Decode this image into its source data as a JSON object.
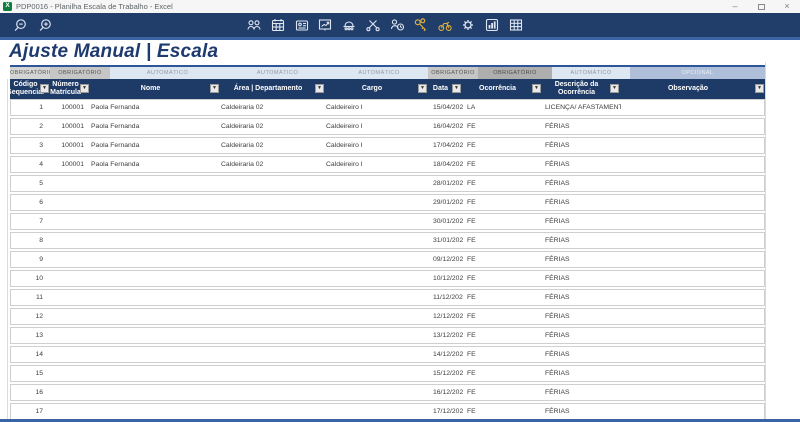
{
  "window": {
    "title": "PDP0016 - Planilha Escala de Trabalho - Excel",
    "controls": {
      "minimize": "–",
      "close": "×"
    }
  },
  "toolbar": {
    "icons": [
      "team-icon",
      "calendar-icon",
      "badge-icon",
      "chart-board-icon",
      "machine-icon",
      "tools-icon",
      "shift-clock-icon",
      "keys-icon",
      "equipment-icon",
      "gear-icon",
      "bar-chart-icon",
      "grid-icon"
    ],
    "zoom_controls": [
      "zoom-out",
      "zoom-in"
    ]
  },
  "page": {
    "title": "Ajuste Manual | Escala"
  },
  "colors": {
    "toolbar_navy": "#213d69",
    "header_navy": "#1e3a66",
    "accent_blue": "#3a64a6",
    "title_blue": "#1e3a6e",
    "gold_icon": "#dcb13f"
  },
  "table": {
    "categories": [
      {
        "label": "OBRIGATÓRIO",
        "tone": "gray-light"
      },
      {
        "label": "OBRIGATÓRIO",
        "tone": "gray"
      },
      {
        "label": "AUTOMÁTICO",
        "tone": "blue-pale"
      },
      {
        "label": "AUTOMÁTICO",
        "tone": "blue-pale"
      },
      {
        "label": "AUTOMÁTICO",
        "tone": "blue-pale"
      },
      {
        "label": "OBRIGATÓRIO",
        "tone": "gray"
      },
      {
        "label": "OBRIGATÓRIO",
        "tone": "gray-dark"
      },
      {
        "label": "AUTOMÁTICO",
        "tone": "blue-pale"
      },
      {
        "label": "OPCIONAL",
        "tone": "blue-slate"
      }
    ],
    "columns": [
      {
        "key": "seq",
        "label": "Código Sequencial"
      },
      {
        "key": "mat",
        "label": "Número Matrícula"
      },
      {
        "key": "nome",
        "label": "Nome"
      },
      {
        "key": "area",
        "label": "Área | Departamento"
      },
      {
        "key": "cargo",
        "label": "Cargo"
      },
      {
        "key": "data",
        "label": "Data"
      },
      {
        "key": "oc",
        "label": "Ocorrência"
      },
      {
        "key": "desc",
        "label": "Descrição da Ocorrência"
      },
      {
        "key": "obs",
        "label": "Observação"
      }
    ],
    "rows": [
      {
        "seq": "1",
        "mat": "100001",
        "nome": "Paola Fernanda",
        "area": "Caldeiraria 02",
        "cargo": "Caldeireiro I",
        "data": "15/04/2022",
        "oc": "LA",
        "desc": "LICENÇA/ AFASTAMENTO",
        "obs": ""
      },
      {
        "seq": "2",
        "mat": "100001",
        "nome": "Paola Fernanda",
        "area": "Caldeiraria 02",
        "cargo": "Caldeireiro I",
        "data": "16/04/2022",
        "oc": "FE",
        "desc": "FÉRIAS",
        "obs": ""
      },
      {
        "seq": "3",
        "mat": "100001",
        "nome": "Paola Fernanda",
        "area": "Caldeiraria 02",
        "cargo": "Caldeireiro I",
        "data": "17/04/2022",
        "oc": "FE",
        "desc": "FÉRIAS",
        "obs": ""
      },
      {
        "seq": "4",
        "mat": "100001",
        "nome": "Paola Fernanda",
        "area": "Caldeiraria 02",
        "cargo": "Caldeireiro I",
        "data": "18/04/2022",
        "oc": "FE",
        "desc": "FÉRIAS",
        "obs": ""
      },
      {
        "seq": "5",
        "mat": "",
        "nome": "",
        "area": "",
        "cargo": "",
        "data": "28/01/2022",
        "oc": "FE",
        "desc": "FÉRIAS",
        "obs": ""
      },
      {
        "seq": "6",
        "mat": "",
        "nome": "",
        "area": "",
        "cargo": "",
        "data": "29/01/2022",
        "oc": "FE",
        "desc": "FÉRIAS",
        "obs": ""
      },
      {
        "seq": "7",
        "mat": "",
        "nome": "",
        "area": "",
        "cargo": "",
        "data": "30/01/2022",
        "oc": "FE",
        "desc": "FÉRIAS",
        "obs": ""
      },
      {
        "seq": "8",
        "mat": "",
        "nome": "",
        "area": "",
        "cargo": "",
        "data": "31/01/2022",
        "oc": "FE",
        "desc": "FÉRIAS",
        "obs": ""
      },
      {
        "seq": "9",
        "mat": "",
        "nome": "",
        "area": "",
        "cargo": "",
        "data": "09/12/2022",
        "oc": "FE",
        "desc": "FÉRIAS",
        "obs": ""
      },
      {
        "seq": "10",
        "mat": "",
        "nome": "",
        "area": "",
        "cargo": "",
        "data": "10/12/2022",
        "oc": "FE",
        "desc": "FÉRIAS",
        "obs": ""
      },
      {
        "seq": "11",
        "mat": "",
        "nome": "",
        "area": "",
        "cargo": "",
        "data": "11/12/2022",
        "oc": "FE",
        "desc": "FÉRIAS",
        "obs": ""
      },
      {
        "seq": "12",
        "mat": "",
        "nome": "",
        "area": "",
        "cargo": "",
        "data": "12/12/2022",
        "oc": "FE",
        "desc": "FÉRIAS",
        "obs": ""
      },
      {
        "seq": "13",
        "mat": "",
        "nome": "",
        "area": "",
        "cargo": "",
        "data": "13/12/2022",
        "oc": "FE",
        "desc": "FÉRIAS",
        "obs": ""
      },
      {
        "seq": "14",
        "mat": "",
        "nome": "",
        "area": "",
        "cargo": "",
        "data": "14/12/2022",
        "oc": "FE",
        "desc": "FÉRIAS",
        "obs": ""
      },
      {
        "seq": "15",
        "mat": "",
        "nome": "",
        "area": "",
        "cargo": "",
        "data": "15/12/2022",
        "oc": "FE",
        "desc": "FÉRIAS",
        "obs": ""
      },
      {
        "seq": "16",
        "mat": "",
        "nome": "",
        "area": "",
        "cargo": "",
        "data": "16/12/2022",
        "oc": "FE",
        "desc": "FÉRIAS",
        "obs": ""
      },
      {
        "seq": "17",
        "mat": "",
        "nome": "",
        "area": "",
        "cargo": "",
        "data": "17/12/2022",
        "oc": "FE",
        "desc": "FÉRIAS",
        "obs": ""
      }
    ]
  }
}
